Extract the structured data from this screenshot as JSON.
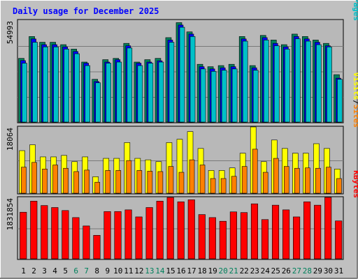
{
  "title": "Daily usage for December 2025",
  "colors": {
    "background": "#c0c0c0",
    "plot_bg": "#b8b8b8",
    "title": "#0000ff",
    "hits": "#00805c",
    "files": "#0000ff",
    "pages": "#00c0c8",
    "visits": "#ffff00",
    "sites": "#ff8000",
    "kbytes": "#ff0000",
    "weekend_day": "#00805c",
    "weekday": "#000000"
  },
  "chart_data": [
    {
      "type": "bar",
      "name": "hits-files-pages",
      "axis_max_label": "54993",
      "ylim": [
        0,
        54993
      ],
      "legend": [
        "Pages",
        "/",
        "Files",
        "/",
        "Hits"
      ],
      "categories": [
        "1",
        "2",
        "3",
        "4",
        "5",
        "6",
        "7",
        "8",
        "9",
        "10",
        "11",
        "12",
        "13",
        "14",
        "15",
        "16",
        "17",
        "18",
        "19",
        "20",
        "21",
        "22",
        "23",
        "24",
        "25",
        "26",
        "27",
        "28",
        "29",
        "30",
        "31"
      ],
      "series": [
        {
          "name": "Hits",
          "values": [
            34400,
            46200,
            43100,
            43100,
            41800,
            39400,
            32400,
            23100,
            33700,
            34400,
            42500,
            32400,
            33700,
            34400,
            45600,
            53700,
            48700,
            31200,
            29900,
            30500,
            31200,
            46200,
            30500,
            46800,
            44300,
            41800,
            47500,
            46200,
            44300,
            42500,
            25600
          ]
        },
        {
          "name": "Files",
          "values": [
            33200,
            44900,
            41800,
            41800,
            40600,
            38100,
            31800,
            21900,
            32400,
            33700,
            41200,
            31800,
            32400,
            33100,
            44300,
            52400,
            47500,
            29900,
            28700,
            29300,
            29900,
            44900,
            29300,
            45600,
            42500,
            40600,
            46200,
            44900,
            43100,
            41200,
            23700
          ]
        },
        {
          "name": "Pages",
          "values": [
            31800,
            43100,
            40600,
            40600,
            39400,
            36900,
            30500,
            21200,
            31800,
            32400,
            40000,
            30500,
            31800,
            32400,
            43100,
            51200,
            46200,
            28700,
            27400,
            28000,
            28700,
            43700,
            28000,
            44300,
            41200,
            39400,
            45000,
            43700,
            41800,
            40600,
            23100
          ]
        }
      ]
    },
    {
      "type": "bar",
      "name": "visits-sites",
      "axis_max_label": "18064",
      "ylim": [
        0,
        18064
      ],
      "legend": [
        "Sites",
        "/",
        "Visits"
      ],
      "categories": [
        "1",
        "2",
        "3",
        "4",
        "5",
        "6",
        "7",
        "8",
        "9",
        "10",
        "11",
        "12",
        "13",
        "14",
        "15",
        "16",
        "17",
        "18",
        "19",
        "20",
        "21",
        "22",
        "23",
        "24",
        "25",
        "26",
        "27",
        "28",
        "29",
        "30",
        "31"
      ],
      "series": [
        {
          "name": "Visits",
          "values": [
            11600,
            13200,
            9900,
            9900,
            10300,
            8600,
            9900,
            4500,
            9500,
            9500,
            13800,
            9500,
            9100,
            8600,
            13800,
            14700,
            16800,
            12200,
            6200,
            6200,
            6900,
            10900,
            18064,
            8600,
            14500,
            12200,
            10900,
            10900,
            13500,
            12200,
            6600
          ]
        },
        {
          "name": "Sites",
          "values": [
            7100,
            8400,
            6600,
            7700,
            6800,
            5900,
            6300,
            3000,
            6200,
            6200,
            8900,
            6200,
            6000,
            5900,
            7300,
            5700,
            9100,
            7700,
            4000,
            4000,
            4600,
            7300,
            12000,
            5700,
            9500,
            7300,
            6800,
            6900,
            6800,
            7100,
            4000
          ]
        }
      ]
    },
    {
      "type": "bar",
      "name": "kbytes",
      "axis_max_label": "1831854",
      "ylim": [
        0,
        1831854
      ],
      "legend": [
        "KBytes"
      ],
      "categories": [
        "1",
        "2",
        "3",
        "4",
        "5",
        "6",
        "7",
        "8",
        "9",
        "10",
        "11",
        "12",
        "13",
        "14",
        "15",
        "16",
        "17",
        "18",
        "19",
        "20",
        "21",
        "22",
        "23",
        "24",
        "25",
        "26",
        "27",
        "28",
        "29",
        "30",
        "31"
      ],
      "series": [
        {
          "name": "KBytes",
          "values": [
            1390000,
            1720000,
            1590000,
            1530000,
            1440000,
            1230000,
            980000,
            700000,
            1410000,
            1410000,
            1460000,
            1250000,
            1530000,
            1720000,
            1830000,
            1700000,
            1760000,
            1320000,
            1230000,
            1120000,
            1400000,
            1380000,
            1640000,
            1170000,
            1600000,
            1460000,
            1250000,
            1700000,
            1600000,
            1831854,
            1130000
          ]
        }
      ]
    }
  ]
}
